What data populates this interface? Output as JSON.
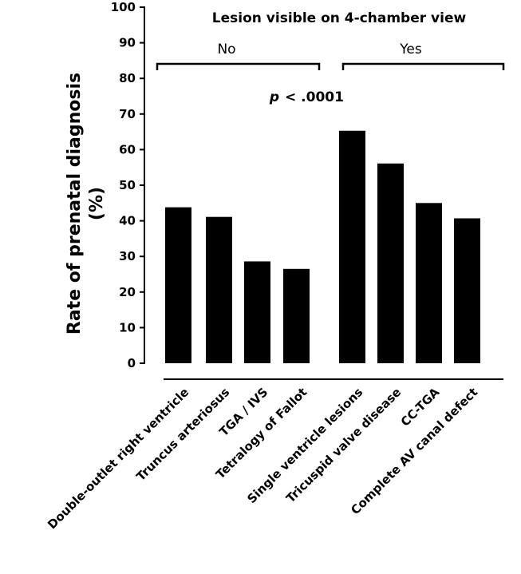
{
  "chart_data": {
    "type": "bar",
    "title": "Lesion visible on 4-chamber view",
    "ylabel": [
      "Rate of prenatal diagnosis",
      "(%)"
    ],
    "group_labels": [
      "No",
      "Yes"
    ],
    "p_value": {
      "symbol": "p",
      "text": "< .0001"
    },
    "categories": [
      "Double-outlet right ventricle",
      "Truncus arteriosus",
      "TGA / IVS",
      "Tetralogy of Fallot",
      "Single ventricle lesions",
      "Tricuspid valve disease",
      "CC-TGA",
      "Complete AV canal defect"
    ],
    "values": [
      43.8,
      41.1,
      28.6,
      26.5,
      65.3,
      56.1,
      45.0,
      40.7
    ],
    "color": "#000000",
    "ylim": [
      0,
      100
    ],
    "yticks": [
      0,
      10,
      20,
      30,
      40,
      50,
      60,
      70,
      80,
      90,
      100
    ],
    "grid": false
  }
}
